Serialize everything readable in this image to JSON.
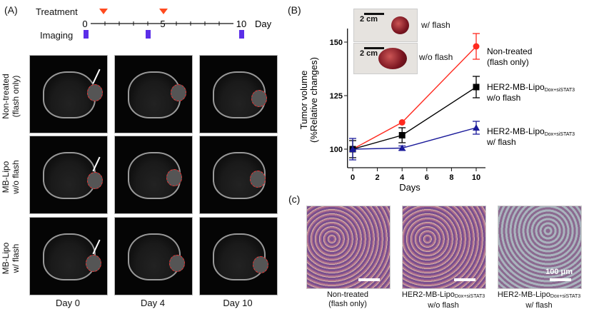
{
  "panel_a": {
    "label": "(A)",
    "treatment_label": "Treatment",
    "imaging_label": "Imaging",
    "day_label": "Day",
    "timeline_ticks": [
      "0",
      "5",
      "10"
    ],
    "treatment_days": [
      1,
      5
    ],
    "imaging_days": [
      0,
      4,
      10
    ],
    "rows": [
      "Non-treated (flash only)",
      "MB-Lipo w/o flash",
      "MB-Lipo w/ flash"
    ],
    "row_lines": [
      [
        "Non-treated",
        "(flash only)"
      ],
      [
        "MB-Lipo",
        "w/o flash"
      ],
      [
        "MB-Lipo",
        "w/ flash"
      ]
    ],
    "columns": [
      "Day 0",
      "Day 4",
      "Day 10"
    ]
  },
  "panel_b": {
    "label": "(B)",
    "photos": [
      {
        "scale": "2 cm",
        "caption": "w/ flash"
      },
      {
        "scale": "2 cm",
        "caption": "w/o flash"
      }
    ]
  },
  "chart_data": {
    "type": "line",
    "xlabel": "Days",
    "ylabel_lines": [
      "Tumor volume",
      "(%Relative changes)"
    ],
    "x": [
      0,
      4,
      10
    ],
    "xticks": [
      "0",
      "2",
      "4",
      "6",
      "8",
      "10"
    ],
    "yticks": [
      "100",
      "125",
      "150"
    ],
    "xlim": [
      0,
      10.5
    ],
    "ylim": [
      90,
      165
    ],
    "grid": false,
    "series": [
      {
        "name": "Non-treated (flash only)",
        "label_lines": [
          "Non-treated",
          "(flash only)"
        ],
        "color": "#ff2a1f",
        "marker": "circle",
        "values": [
          100,
          112.5,
          148
        ],
        "errors": [
          0,
          0,
          6
        ]
      },
      {
        "name": "HER2-MB-Lipo Dox+siSTAT3 w/o flash",
        "label_lines": [
          "HER2-MB-Lipo",
          "Dox+siSTAT3",
          "w/o flash"
        ],
        "color": "#000000",
        "marker": "square",
        "values": [
          100,
          106.5,
          129
        ],
        "errors": [
          4,
          3.5,
          5
        ]
      },
      {
        "name": "HER2-MB-Lipo Dox+siSTAT3 w/ flash",
        "label_lines": [
          "HER2-MB-Lipo",
          "Dox+siSTAT3",
          "w/ flash"
        ],
        "color": "#1a1a9a",
        "marker": "triangle",
        "values": [
          100,
          100.5,
          110
        ],
        "errors": [
          5,
          1,
          3
        ]
      }
    ]
  },
  "panel_c": {
    "label": "(c)",
    "scale_text": "100 μm",
    "captions": [
      [
        "Non-treated",
        "",
        "(flash only)"
      ],
      [
        "HER2-MB-Lipo",
        "Dox+siSTAT3",
        "w/o flash"
      ],
      [
        "HER2-MB-Lipo",
        "Dox+siSTAT3",
        "w/ flash"
      ]
    ]
  }
}
